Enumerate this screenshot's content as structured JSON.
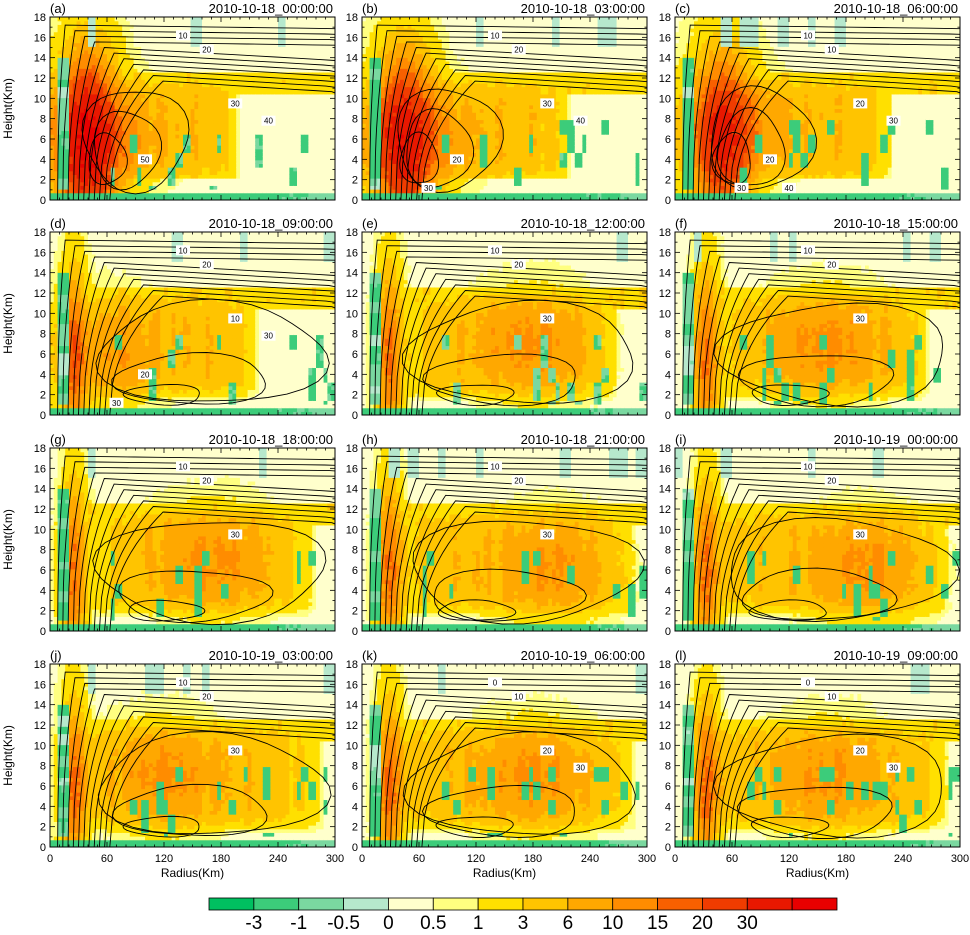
{
  "chart_data": {
    "type": "heatmap",
    "rows": 4,
    "cols": 3,
    "xlabel": "Radius(Km)",
    "ylabel": "Height(Km)",
    "xlim": [
      0,
      300
    ],
    "ylim": [
      0,
      18
    ],
    "x_ticks": [
      0,
      60,
      120,
      180,
      240,
      300
    ],
    "y_ticks": [
      0,
      2,
      4,
      6,
      8,
      10,
      12,
      14,
      16,
      18
    ],
    "panels": [
      {
        "tag": "(a)",
        "time": "2010-10-18_00:00:00",
        "core_r": 42,
        "core_h": 6,
        "strength": 1.0,
        "band_r": [
          60,
          200
        ],
        "band_h": [
          2,
          12
        ],
        "cool": 0.7,
        "contour_labels": [
          "10",
          "20",
          "30",
          "40",
          "50"
        ]
      },
      {
        "tag": "(b)",
        "time": "2010-10-18_03:00:00",
        "core_r": 45,
        "core_h": 6,
        "strength": 0.85,
        "band_r": [
          60,
          220
        ],
        "band_h": [
          2,
          12
        ],
        "cool": 0.8,
        "contour_labels": [
          "10",
          "20",
          "30",
          "40",
          "20",
          "30"
        ]
      },
      {
        "tag": "(c)",
        "time": "2010-10-18_06:00:00",
        "core_r": 50,
        "core_h": 7,
        "strength": 0.7,
        "band_r": [
          50,
          230
        ],
        "band_h": [
          2,
          12
        ],
        "cool": 0.9,
        "contour_labels": [
          "10",
          "10",
          "20",
          "30",
          "20",
          "30",
          "40"
        ]
      },
      {
        "tag": "(d)",
        "time": "2010-10-18_09:00:00",
        "core_r": 50,
        "core_h": 6,
        "strength": 0.55,
        "band_r": [
          40,
          220
        ],
        "band_h": [
          1,
          12
        ],
        "cool": 0.7,
        "contour_labels": [
          "10",
          "20",
          "10",
          "30",
          "20",
          "30"
        ]
      },
      {
        "tag": "(e)",
        "time": "2010-10-18_12:00:00",
        "core_r": 180,
        "core_h": 7,
        "strength": 0.5,
        "band_r": [
          40,
          270
        ],
        "band_h": [
          1,
          12
        ],
        "cool": 0.6,
        "contour_labels": [
          "10",
          "20",
          "30"
        ]
      },
      {
        "tag": "(f)",
        "time": "2010-10-18_15:00:00",
        "core_r": 160,
        "core_h": 7,
        "strength": 0.5,
        "band_r": [
          40,
          270
        ],
        "band_h": [
          1,
          12
        ],
        "cool": 0.8,
        "contour_labels": [
          "10",
          "20",
          "30"
        ]
      },
      {
        "tag": "(g)",
        "time": "2010-10-18_18:00:00",
        "core_r": 170,
        "core_h": 7,
        "strength": 0.5,
        "band_r": [
          40,
          280
        ],
        "band_h": [
          1,
          12
        ],
        "cool": 1.0,
        "contour_labels": [
          "10",
          "20",
          "30"
        ]
      },
      {
        "tag": "(h)",
        "time": "2010-10-18_21:00:00",
        "core_r": 200,
        "core_h": 6,
        "strength": 0.45,
        "band_r": [
          30,
          290
        ],
        "band_h": [
          1,
          12
        ],
        "cool": 0.8,
        "contour_labels": [
          "10",
          "20",
          "30"
        ]
      },
      {
        "tag": "(i)",
        "time": "2010-10-19_00:00:00",
        "core_r": 200,
        "core_h": 6,
        "strength": 0.5,
        "band_r": [
          30,
          290
        ],
        "band_h": [
          1,
          12
        ],
        "cool": 0.8,
        "contour_labels": [
          "10",
          "20",
          "30"
        ]
      },
      {
        "tag": "(j)",
        "time": "2010-10-19_03:00:00",
        "core_r": 120,
        "core_h": 7,
        "strength": 0.5,
        "band_r": [
          20,
          290
        ],
        "band_h": [
          1,
          12
        ],
        "cool": 0.8,
        "contour_labels": [
          "10",
          "20",
          "30"
        ]
      },
      {
        "tag": "(k)",
        "time": "2010-10-19_06:00:00",
        "core_r": 180,
        "core_h": 7,
        "strength": 0.5,
        "band_r": [
          20,
          290
        ],
        "band_h": [
          1,
          12
        ],
        "cool": 0.9,
        "contour_labels": [
          "0",
          "10",
          "20",
          "30"
        ]
      },
      {
        "tag": "(l)",
        "time": "2010-10-19_09:00:00",
        "core_r": 160,
        "core_h": 7,
        "strength": 0.45,
        "band_r": [
          20,
          290
        ],
        "band_h": [
          1,
          12
        ],
        "cool": 0.9,
        "contour_labels": [
          "0",
          "10",
          "20",
          "30"
        ]
      }
    ],
    "colorbar": {
      "colors": [
        "#00c060",
        "#3ccc7a",
        "#7ad8a0",
        "#b6e8cc",
        "#ffffcc",
        "#ffff80",
        "#ffe000",
        "#ffc400",
        "#ffa800",
        "#ff8c00",
        "#f86000",
        "#f03c00",
        "#e81800",
        "#e80000"
      ],
      "tick_labels": [
        "-3",
        "-1",
        "-0.5",
        "0",
        "0.5",
        "1",
        "3",
        "6",
        "10",
        "15",
        "20",
        "30"
      ],
      "tick_index": [
        1,
        2,
        3,
        4,
        5,
        6,
        7,
        8,
        9,
        10,
        11,
        12
      ]
    }
  }
}
